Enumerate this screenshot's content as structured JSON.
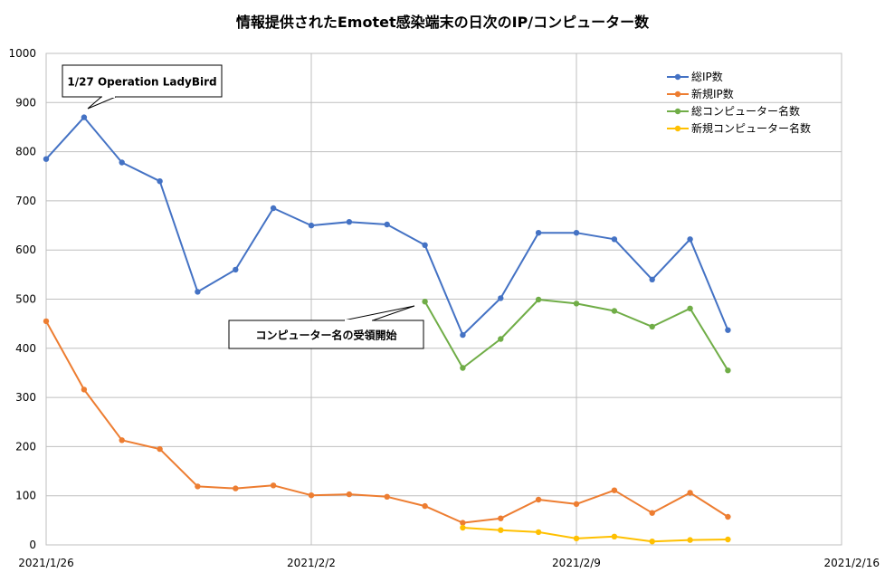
{
  "chart_data": {
    "type": "line",
    "title": "情報提供されたEmotet感染端末の日次のIP/コンピューター数",
    "xlabel": "",
    "ylabel": "",
    "ylim": [
      0,
      1000
    ],
    "yticks": [
      "0",
      "100",
      "200",
      "300",
      "400",
      "500",
      "600",
      "700",
      "800",
      "900",
      "1000"
    ],
    "xticks": [
      "2021/1/26",
      "2021/2/2",
      "2021/2/9",
      "2021/2/16"
    ],
    "grid": true,
    "legend_position": "top-right",
    "annotations": [
      {
        "id": "ann-ladybird",
        "text": "1/27 Operation LadyBird"
      },
      {
        "id": "ann-computer-name",
        "text": "コンピューター名の受領開始"
      }
    ],
    "series": [
      {
        "name": "総IP数",
        "color": "#4472C4",
        "dates": [
          "2021/1/26",
          "2021/1/27",
          "2021/1/28",
          "2021/1/29",
          "2021/1/30",
          "2021/1/31",
          "2021/2/1",
          "2021/2/2",
          "2021/2/3",
          "2021/2/4",
          "2021/2/5",
          "2021/2/6",
          "2021/2/7",
          "2021/2/8",
          "2021/2/9",
          "2021/2/10",
          "2021/2/11",
          "2021/2/12",
          "2021/2/13"
        ],
        "values": [
          785,
          870,
          778,
          740,
          515,
          560,
          685,
          650,
          657,
          652,
          610,
          427,
          502,
          635,
          635,
          622,
          540,
          622,
          437
        ]
      },
      {
        "name": "新規IP数",
        "color": "#ED7D31",
        "dates": [
          "2021/1/26",
          "2021/1/27",
          "2021/1/28",
          "2021/1/29",
          "2021/1/30",
          "2021/1/31",
          "2021/2/1",
          "2021/2/2",
          "2021/2/3",
          "2021/2/4",
          "2021/2/5",
          "2021/2/6",
          "2021/2/7",
          "2021/2/8",
          "2021/2/9",
          "2021/2/10",
          "2021/2/11",
          "2021/2/12",
          "2021/2/13"
        ],
        "values": [
          455,
          316,
          213,
          195,
          119,
          115,
          121,
          101,
          103,
          98,
          79,
          45,
          54,
          92,
          83,
          111,
          65,
          106,
          57
        ]
      },
      {
        "name": "総コンピューター名数",
        "color": "#70AD47",
        "dates": [
          "2021/2/5",
          "2021/2/6",
          "2021/2/7",
          "2021/2/8",
          "2021/2/9",
          "2021/2/10",
          "2021/2/11",
          "2021/2/12",
          "2021/2/13"
        ],
        "values": [
          495,
          360,
          419,
          499,
          491,
          476,
          444,
          481,
          355
        ]
      },
      {
        "name": "新規コンピューター名数",
        "color": "#FFC000",
        "dates": [
          "2021/2/6",
          "2021/2/7",
          "2021/2/8",
          "2021/2/9",
          "2021/2/10",
          "2021/2/11",
          "2021/2/12",
          "2021/2/13"
        ],
        "values": [
          35,
          30,
          26,
          13,
          17,
          7,
          10,
          11
        ]
      }
    ]
  }
}
